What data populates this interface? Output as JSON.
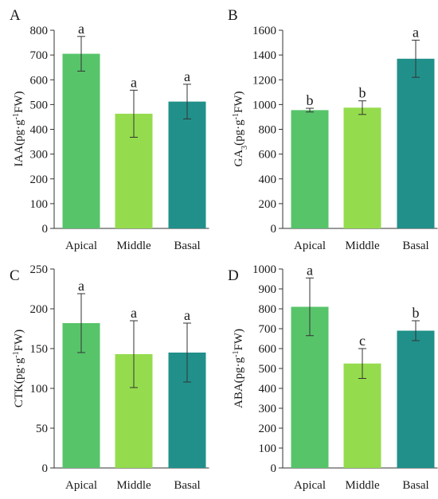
{
  "colors": {
    "apical": "#57c46a",
    "middle": "#94dc4d",
    "basal": "#21908a"
  },
  "chart_data": [
    {
      "panel": "A",
      "type": "bar",
      "categories": [
        "Apical",
        "Middle",
        "Basal"
      ],
      "values": [
        705,
        463,
        512
      ],
      "errors": [
        70,
        95,
        70
      ],
      "significance": [
        "a",
        "a",
        "a"
      ],
      "ylabel": {
        "prefix": "IAA(pg·g",
        "sup": "-1",
        "suffix": "FW)"
      },
      "ylim": [
        0,
        800
      ],
      "yticks": [
        0,
        100,
        200,
        300,
        400,
        500,
        600,
        700,
        800
      ]
    },
    {
      "panel": "B",
      "type": "bar",
      "categories": [
        "Apical",
        "Middle",
        "Basal"
      ],
      "values": [
        955,
        975,
        1370
      ],
      "errors": [
        15,
        55,
        150
      ],
      "significance": [
        "b",
        "b",
        "a"
      ],
      "ylabel": {
        "prefix": "GA",
        "sub": "3",
        "mid": "(pg·g",
        "sup": "-1",
        "suffix": "FW)"
      },
      "ylim": [
        0,
        1600
      ],
      "yticks": [
        0,
        200,
        400,
        600,
        800,
        1000,
        1200,
        1400,
        1600
      ]
    },
    {
      "panel": "C",
      "type": "bar",
      "categories": [
        "Apical",
        "Middle",
        "Basal"
      ],
      "values": [
        182,
        143,
        145
      ],
      "errors": [
        37,
        42,
        37
      ],
      "significance": [
        "a",
        "a",
        "a"
      ],
      "ylabel": {
        "prefix": "CTK(pg·g",
        "sup": "-1",
        "suffix": "FW)"
      },
      "ylim": [
        0,
        250
      ],
      "yticks": [
        0,
        50,
        100,
        150,
        200,
        250
      ]
    },
    {
      "panel": "D",
      "type": "bar",
      "categories": [
        "Apical",
        "Middle",
        "Basal"
      ],
      "values": [
        810,
        525,
        690
      ],
      "errors": [
        145,
        75,
        50
      ],
      "significance": [
        "a",
        "c",
        "b"
      ],
      "ylabel": {
        "prefix": "ABA(pg·g",
        "sup": "-1",
        "suffix": "FW)"
      },
      "ylim": [
        0,
        1000
      ],
      "yticks": [
        0,
        100,
        200,
        300,
        400,
        500,
        600,
        700,
        800,
        900,
        1000
      ]
    }
  ]
}
